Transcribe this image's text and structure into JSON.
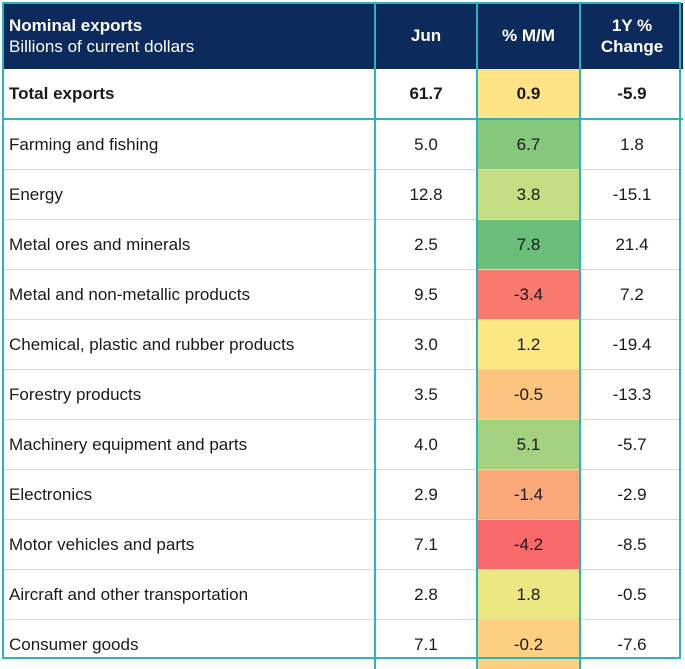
{
  "header": {
    "title": "Nominal exports",
    "subtitle": "Billions of current dollars",
    "col_jun": "Jun",
    "col_mm": "% M/M",
    "col_yy_line1": "1Y %",
    "col_yy_line2": "Change"
  },
  "rows": [
    {
      "name": "Total exports",
      "jun": "61.7",
      "mm": "0.9",
      "yy": "-5.9",
      "mm_color": "#fde286"
    },
    {
      "name": "Farming and fishing",
      "jun": "5.0",
      "mm": "6.7",
      "yy": "1.8",
      "mm_color": "#86c97c"
    },
    {
      "name": "Energy",
      "jun": "12.8",
      "mm": "3.8",
      "yy": "-15.1",
      "mm_color": "#c4dc82"
    },
    {
      "name": "Metal ores and minerals",
      "jun": "2.5",
      "mm": "7.8",
      "yy": "21.4",
      "mm_color": "#6bbd7a"
    },
    {
      "name": "Metal and non-metallic products",
      "jun": "9.5",
      "mm": "-3.4",
      "yy": "7.2",
      "mm_color": "#f8796d"
    },
    {
      "name": "Chemical, plastic and rubber products",
      "jun": "3.0",
      "mm": "1.2",
      "yy": "-19.4",
      "mm_color": "#fbe883"
    },
    {
      "name": "Forestry products",
      "jun": "3.5",
      "mm": "-0.5",
      "yy": "-13.3",
      "mm_color": "#fbc57f"
    },
    {
      "name": "Machinery equipment and parts",
      "jun": "4.0",
      "mm": "5.1",
      "yy": "-5.7",
      "mm_color": "#a4d17f"
    },
    {
      "name": "Electronics",
      "jun": "2.9",
      "mm": "-1.4",
      "yy": "-2.9",
      "mm_color": "#faa877"
    },
    {
      "name": "Motor vehicles and parts",
      "jun": "7.1",
      "mm": "-4.2",
      "yy": "-8.5",
      "mm_color": "#f8696b"
    },
    {
      "name": "Aircraft and other transportation",
      "jun": "2.8",
      "mm": "1.8",
      "yy": "-0.5",
      "mm_color": "#ebe582"
    },
    {
      "name": "Consumer goods",
      "jun": "7.1",
      "mm": "-0.2",
      "yy": "-7.6",
      "mm_color": "#fccf81"
    }
  ]
}
